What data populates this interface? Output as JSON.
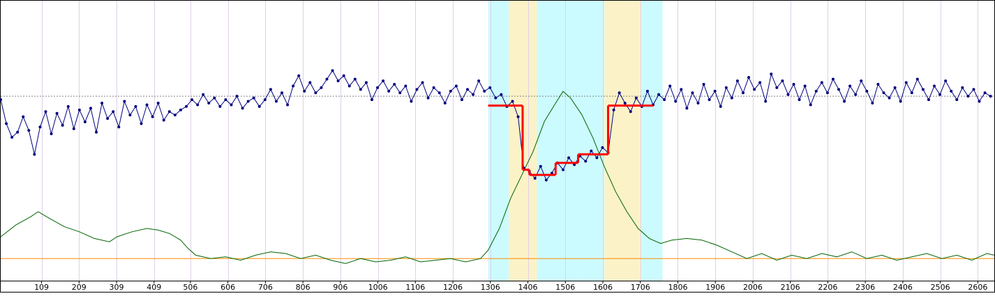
{
  "chart_data": {
    "type": "line",
    "title": "",
    "xlabel": "",
    "ylabel": "",
    "xlim": [
      0,
      2650
    ],
    "x_tick_labels": [
      "109",
      "209",
      "309",
      "409",
      "506",
      "606",
      "706",
      "806",
      "906",
      "1006",
      "1106",
      "1206",
      "1306",
      "1406",
      "1506",
      "1606",
      "1706",
      "1806",
      "1906",
      "2006",
      "2106",
      "2206",
      "2306",
      "2406",
      "2506",
      "2606"
    ],
    "x_tick_values": [
      109,
      209,
      309,
      409,
      506,
      606,
      706,
      806,
      906,
      1006,
      1106,
      1206,
      1306,
      1406,
      1506,
      1606,
      1706,
      1806,
      1906,
      2006,
      2106,
      2206,
      2306,
      2406,
      2506,
      2606
    ],
    "shaded_regions": [
      {
        "x0": 1300,
        "x1": 1355,
        "color": "#ccfbff"
      },
      {
        "x0": 1355,
        "x1": 1430,
        "color": "#fbf2c8"
      },
      {
        "x0": 1430,
        "x1": 1555,
        "color": "#ccfbff"
      },
      {
        "x0": 1555,
        "x1": 1610,
        "color": "#ccfbff"
      },
      {
        "x0": 1610,
        "x1": 1710,
        "color": "#fbf2c8"
      },
      {
        "x0": 1710,
        "x1": 1765,
        "color": "#ccfbff"
      }
    ],
    "baseline_mean": 0.0,
    "segments": [
      {
        "x0": 1300,
        "x1": 1392,
        "y": -0.55
      },
      {
        "x0": 1392,
        "x1": 1410,
        "y": -4.3
      },
      {
        "x0": 1410,
        "x1": 1480,
        "y": -4.6
      },
      {
        "x0": 1480,
        "x1": 1540,
        "y": -3.9
      },
      {
        "x0": 1540,
        "x1": 1620,
        "y": -3.4
      },
      {
        "x0": 1620,
        "x1": 1740,
        "y": -0.55
      }
    ],
    "signal_y_range": [
      -7,
      4
    ],
    "series": [
      {
        "values": [
          [
            0,
            -0.2
          ],
          [
            15,
            -1.6
          ],
          [
            30,
            -2.4
          ],
          [
            45,
            -2.1
          ],
          [
            60,
            -1.2
          ],
          [
            75,
            -2.0
          ],
          [
            90,
            -3.4
          ],
          [
            105,
            -1.8
          ],
          [
            120,
            -0.9
          ],
          [
            135,
            -2.2
          ],
          [
            150,
            -1.0
          ],
          [
            165,
            -1.7
          ],
          [
            180,
            -0.6
          ],
          [
            195,
            -1.9
          ],
          [
            210,
            -0.8
          ],
          [
            225,
            -1.5
          ],
          [
            240,
            -0.7
          ],
          [
            255,
            -2.1
          ],
          [
            270,
            -0.4
          ],
          [
            285,
            -1.3
          ],
          [
            300,
            -0.9
          ],
          [
            315,
            -1.8
          ],
          [
            330,
            -0.3
          ],
          [
            345,
            -1.1
          ],
          [
            360,
            -0.6
          ],
          [
            375,
            -1.6
          ],
          [
            390,
            -0.5
          ],
          [
            405,
            -1.2
          ],
          [
            420,
            -0.4
          ],
          [
            435,
            -1.4
          ],
          [
            450,
            -0.9
          ],
          [
            465,
            -1.1
          ],
          [
            480,
            -0.8
          ],
          [
            495,
            -0.6
          ],
          [
            510,
            -0.2
          ],
          [
            525,
            -0.5
          ],
          [
            540,
            0.1
          ],
          [
            555,
            -0.4
          ],
          [
            570,
            -0.1
          ],
          [
            585,
            -0.6
          ],
          [
            600,
            -0.2
          ],
          [
            615,
            -0.5
          ],
          [
            630,
            0.0
          ],
          [
            645,
            -0.7
          ],
          [
            660,
            -0.3
          ],
          [
            675,
            -0.1
          ],
          [
            690,
            -0.6
          ],
          [
            705,
            -0.2
          ],
          [
            720,
            0.4
          ],
          [
            735,
            -0.3
          ],
          [
            750,
            0.2
          ],
          [
            765,
            -0.5
          ],
          [
            780,
            0.6
          ],
          [
            795,
            1.2
          ],
          [
            810,
            0.3
          ],
          [
            825,
            0.8
          ],
          [
            840,
            0.2
          ],
          [
            855,
            0.5
          ],
          [
            870,
            1.0
          ],
          [
            885,
            1.5
          ],
          [
            900,
            0.9
          ],
          [
            915,
            1.2
          ],
          [
            930,
            0.6
          ],
          [
            945,
            1.0
          ],
          [
            960,
            0.4
          ],
          [
            975,
            0.8
          ],
          [
            990,
            -0.2
          ],
          [
            1005,
            0.5
          ],
          [
            1020,
            0.9
          ],
          [
            1035,
            0.3
          ],
          [
            1050,
            0.7
          ],
          [
            1065,
            0.2
          ],
          [
            1080,
            0.6
          ],
          [
            1095,
            -0.3
          ],
          [
            1110,
            0.4
          ],
          [
            1125,
            0.8
          ],
          [
            1140,
            -0.1
          ],
          [
            1155,
            0.5
          ],
          [
            1170,
            0.2
          ],
          [
            1185,
            -0.4
          ],
          [
            1200,
            0.3
          ],
          [
            1215,
            0.6
          ],
          [
            1230,
            -0.2
          ],
          [
            1245,
            0.4
          ],
          [
            1260,
            0.1
          ],
          [
            1275,
            0.9
          ],
          [
            1290,
            0.3
          ],
          [
            1305,
            0.5
          ],
          [
            1320,
            -0.1
          ],
          [
            1335,
            0.1
          ],
          [
            1350,
            -0.6
          ],
          [
            1365,
            -0.3
          ],
          [
            1380,
            -1.2
          ],
          [
            1395,
            -4.2
          ],
          [
            1410,
            -4.4
          ],
          [
            1425,
            -4.8
          ],
          [
            1440,
            -4.1
          ],
          [
            1455,
            -4.9
          ],
          [
            1470,
            -4.5
          ],
          [
            1485,
            -3.9
          ],
          [
            1500,
            -4.3
          ],
          [
            1515,
            -3.6
          ],
          [
            1530,
            -4.0
          ],
          [
            1545,
            -3.5
          ],
          [
            1560,
            -3.8
          ],
          [
            1575,
            -3.2
          ],
          [
            1590,
            -3.6
          ],
          [
            1605,
            -3.0
          ],
          [
            1620,
            -3.3
          ],
          [
            1635,
            -0.8
          ],
          [
            1650,
            0.2
          ],
          [
            1665,
            -0.4
          ],
          [
            1680,
            -0.9
          ],
          [
            1695,
            -0.1
          ],
          [
            1710,
            -0.6
          ],
          [
            1725,
            0.3
          ],
          [
            1740,
            -0.5
          ],
          [
            1755,
            0.1
          ],
          [
            1770,
            -0.2
          ],
          [
            1785,
            0.6
          ],
          [
            1800,
            -0.3
          ],
          [
            1815,
            0.4
          ],
          [
            1830,
            -0.7
          ],
          [
            1845,
            0.2
          ],
          [
            1860,
            -0.4
          ],
          [
            1875,
            0.7
          ],
          [
            1890,
            -0.2
          ],
          [
            1905,
            0.3
          ],
          [
            1920,
            -0.6
          ],
          [
            1935,
            0.5
          ],
          [
            1950,
            -0.1
          ],
          [
            1965,
            0.9
          ],
          [
            1980,
            0.2
          ],
          [
            1995,
            1.1
          ],
          [
            2010,
            0.4
          ],
          [
            2025,
            0.8
          ],
          [
            2040,
            -0.3
          ],
          [
            2055,
            1.3
          ],
          [
            2070,
            0.5
          ],
          [
            2085,
            0.9
          ],
          [
            2100,
            0.1
          ],
          [
            2115,
            0.7
          ],
          [
            2130,
            -0.2
          ],
          [
            2145,
            0.6
          ],
          [
            2160,
            -0.5
          ],
          [
            2175,
            0.3
          ],
          [
            2190,
            0.8
          ],
          [
            2205,
            0.2
          ],
          [
            2220,
            1.0
          ],
          [
            2235,
            0.4
          ],
          [
            2250,
            -0.3
          ],
          [
            2265,
            0.6
          ],
          [
            2280,
            0.1
          ],
          [
            2295,
            0.9
          ],
          [
            2310,
            0.3
          ],
          [
            2325,
            -0.4
          ],
          [
            2340,
            0.7
          ],
          [
            2355,
            0.2
          ],
          [
            2370,
            -0.1
          ],
          [
            2385,
            0.5
          ],
          [
            2400,
            -0.3
          ],
          [
            2415,
            0.8
          ],
          [
            2430,
            0.2
          ],
          [
            2445,
            1.0
          ],
          [
            2460,
            0.4
          ],
          [
            2475,
            -0.2
          ],
          [
            2490,
            0.6
          ],
          [
            2505,
            0.1
          ],
          [
            2520,
            0.9
          ],
          [
            2535,
            0.3
          ],
          [
            2550,
            -0.2
          ],
          [
            2565,
            0.5
          ],
          [
            2580,
            0.0
          ],
          [
            2595,
            0.4
          ],
          [
            2610,
            -0.3
          ],
          [
            2625,
            0.2
          ],
          [
            2640,
            0.0
          ]
        ],
        "color": "#00007f"
      },
      {
        "values": [
          [
            0,
            -9.5
          ],
          [
            40,
            -8.8
          ],
          [
            80,
            -8.3
          ],
          [
            100,
            -8.0
          ],
          [
            130,
            -8.4
          ],
          [
            170,
            -8.9
          ],
          [
            210,
            -9.2
          ],
          [
            250,
            -9.6
          ],
          [
            290,
            -9.8
          ],
          [
            310,
            -9.5
          ],
          [
            350,
            -9.2
          ],
          [
            390,
            -9.0
          ],
          [
            420,
            -9.1
          ],
          [
            450,
            -9.3
          ],
          [
            480,
            -9.7
          ],
          [
            500,
            -10.2
          ],
          [
            520,
            -10.6
          ],
          [
            560,
            -10.8
          ],
          [
            600,
            -10.7
          ],
          [
            640,
            -10.9
          ],
          [
            680,
            -10.6
          ],
          [
            720,
            -10.4
          ],
          [
            760,
            -10.5
          ],
          [
            800,
            -10.8
          ],
          [
            840,
            -10.6
          ],
          [
            880,
            -10.9
          ],
          [
            920,
            -11.1
          ],
          [
            960,
            -10.8
          ],
          [
            1000,
            -11.0
          ],
          [
            1040,
            -10.9
          ],
          [
            1080,
            -10.7
          ],
          [
            1120,
            -11.0
          ],
          [
            1160,
            -10.9
          ],
          [
            1200,
            -10.8
          ],
          [
            1240,
            -11.0
          ],
          [
            1280,
            -10.8
          ],
          [
            1300,
            -10.3
          ],
          [
            1330,
            -9.0
          ],
          [
            1360,
            -7.2
          ],
          [
            1390,
            -5.8
          ],
          [
            1420,
            -4.4
          ],
          [
            1450,
            -2.6
          ],
          [
            1480,
            -1.5
          ],
          [
            1500,
            -0.8
          ],
          [
            1520,
            -1.2
          ],
          [
            1550,
            -2.2
          ],
          [
            1580,
            -3.6
          ],
          [
            1610,
            -5.3
          ],
          [
            1640,
            -6.8
          ],
          [
            1670,
            -8.0
          ],
          [
            1700,
            -9.0
          ],
          [
            1730,
            -9.6
          ],
          [
            1760,
            -9.9
          ],
          [
            1790,
            -9.7
          ],
          [
            1830,
            -9.6
          ],
          [
            1870,
            -9.7
          ],
          [
            1910,
            -10.0
          ],
          [
            1950,
            -10.4
          ],
          [
            1990,
            -10.8
          ],
          [
            2030,
            -10.5
          ],
          [
            2070,
            -10.9
          ],
          [
            2110,
            -10.6
          ],
          [
            2150,
            -10.8
          ],
          [
            2190,
            -10.5
          ],
          [
            2230,
            -10.7
          ],
          [
            2270,
            -10.4
          ],
          [
            2310,
            -10.8
          ],
          [
            2350,
            -10.6
          ],
          [
            2390,
            -10.9
          ],
          [
            2430,
            -10.7
          ],
          [
            2470,
            -10.5
          ],
          [
            2510,
            -10.8
          ],
          [
            2550,
            -10.6
          ],
          [
            2590,
            -10.9
          ],
          [
            2630,
            -10.5
          ],
          [
            2650,
            -10.6
          ]
        ],
        "color": "#006400"
      }
    ],
    "reference_line_color": "#ff8c00",
    "reference_line_y": -10.8,
    "lower_y_range": [
      -12,
      -7
    ]
  }
}
